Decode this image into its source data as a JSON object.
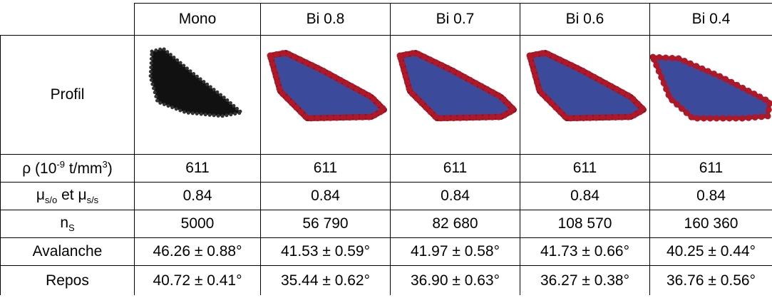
{
  "table": {
    "columns": [
      "Mono",
      "Bi 0.8",
      "Bi 0.7",
      "Bi 0.6",
      "Bi 0.4"
    ],
    "rows": [
      {
        "label": [
          {
            "text": "Profil"
          }
        ]
      },
      {
        "label": [
          {
            "text": "ρ (10"
          },
          {
            "text": "-9",
            "sup": true
          },
          {
            "text": " t/mm"
          },
          {
            "text": "3",
            "sup": true
          },
          {
            "text": ")"
          }
        ],
        "values": [
          "611",
          "611",
          "611",
          "611",
          "611"
        ]
      },
      {
        "label": [
          {
            "text": "μ"
          },
          {
            "text": "s/o",
            "sub": true
          },
          {
            "text": " et μ"
          },
          {
            "text": "s/s",
            "sub": true
          }
        ],
        "values": [
          "0.84",
          "0.84",
          "0.84",
          "0.84",
          "0.84"
        ]
      },
      {
        "label": [
          {
            "text": "n"
          },
          {
            "text": "S",
            "sub": true
          }
        ],
        "values": [
          "5000",
          "56 790",
          "82 680",
          "108 570",
          "160 360"
        ]
      },
      {
        "label": [
          {
            "text": "Avalanche"
          }
        ],
        "values": [
          "46.26 ± 0.88°",
          "41.53 ± 0.59°",
          "41.97 ± 0.58°",
          "41.73 ± 0.66°",
          "40.25 ± 0.44°"
        ]
      },
      {
        "label": [
          {
            "text": "Repos"
          }
        ],
        "values": [
          "40.72 ± 0.41°",
          "35.44 ± 0.62°",
          "36.90 ± 0.63°",
          "36.27 ± 0.38°",
          "36.76 ± 0.56°"
        ]
      }
    ]
  }
}
